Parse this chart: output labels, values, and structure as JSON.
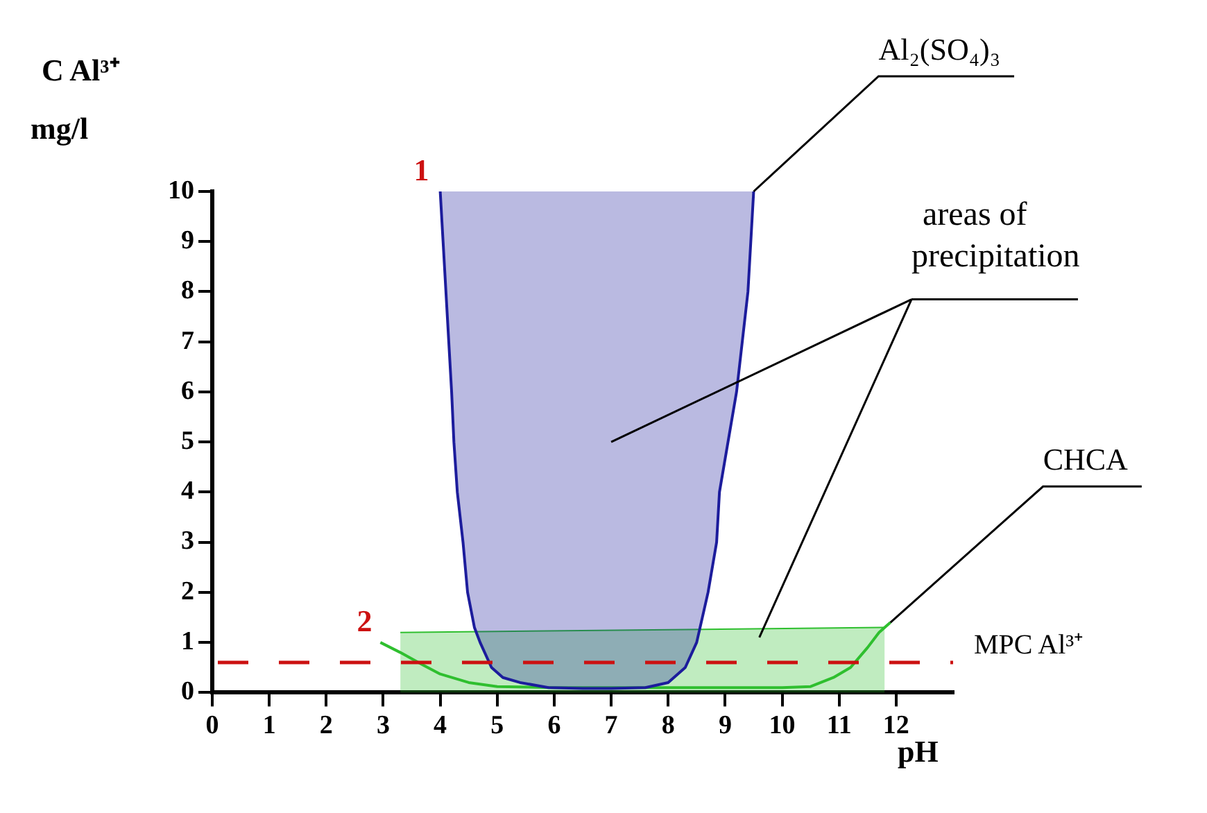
{
  "chart_data": {
    "type": "line",
    "xlabel": "pH",
    "ylabel": "C Al³⁺\nmg/l",
    "xlim": [
      0,
      13
    ],
    "xticks": [
      0,
      1,
      2,
      3,
      4,
      5,
      6,
      7,
      8,
      9,
      10,
      11,
      12
    ],
    "ylim": [
      0,
      10
    ],
    "yticks": [
      0,
      1,
      2,
      3,
      4,
      5,
      6,
      7,
      8,
      9,
      10
    ],
    "grid": false,
    "legend": false,
    "marker": "none",
    "line_style": "solid",
    "series": [
      {
        "color": "#1c1c9c",
        "x": [
          4.0,
          4.05,
          4.1,
          4.15,
          4.2,
          4.24,
          4.3,
          4.4,
          4.48,
          4.6,
          4.7,
          4.9,
          5.1,
          5.4,
          5.9,
          6.5,
          7.0,
          7.6,
          8.0,
          8.3,
          8.5,
          8.7,
          8.85,
          8.9,
          9.05,
          9.2,
          9.3,
          9.4,
          9.45,
          9.5
        ],
        "values": [
          10,
          9,
          8,
          7,
          6,
          5,
          4,
          3,
          2,
          1.3,
          1,
          0.5,
          0.3,
          0.2,
          0.1,
          0.08,
          0.08,
          0.1,
          0.2,
          0.5,
          1,
          2,
          3,
          4,
          5,
          6,
          7,
          8,
          9,
          10
        ]
      },
      {
        "color": "#2fbf2f",
        "x": [
          2.95,
          3.3,
          3.7,
          4.0,
          4.5,
          5.0,
          6,
          7,
          8,
          9,
          10,
          10.5,
          10.9,
          11.2,
          11.5,
          11.7,
          11.9
        ],
        "values": [
          1,
          0.8,
          0.55,
          0.37,
          0.2,
          0.12,
          0.1,
          0.1,
          0.1,
          0.1,
          0.1,
          0.12,
          0.3,
          0.5,
          0.9,
          1.2,
          1.4
        ]
      },
      {
        "type": "area",
        "color": "#2fbf2f",
        "x": [
          3.3,
          11.8
        ],
        "values": [
          1.2,
          1.3
        ]
      }
    ],
    "ref_lines": [
      {
        "axis": "y",
        "value": 0.6,
        "label": "MPC Al³⁺",
        "color": "#cc1111",
        "line_style": "dashed"
      }
    ],
    "annotations": [
      {
        "text": "1",
        "x": 4,
        "y": 10
      },
      {
        "text": "2",
        "x": 3,
        "y": 1
      },
      {
        "text": "Al₂(SO₄)₃",
        "x": 9.5,
        "y": 10
      },
      "areas of precipitation",
      {
        "text": "CHCA",
        "x": 11.9,
        "y": 1.4
      }
    ]
  }
}
